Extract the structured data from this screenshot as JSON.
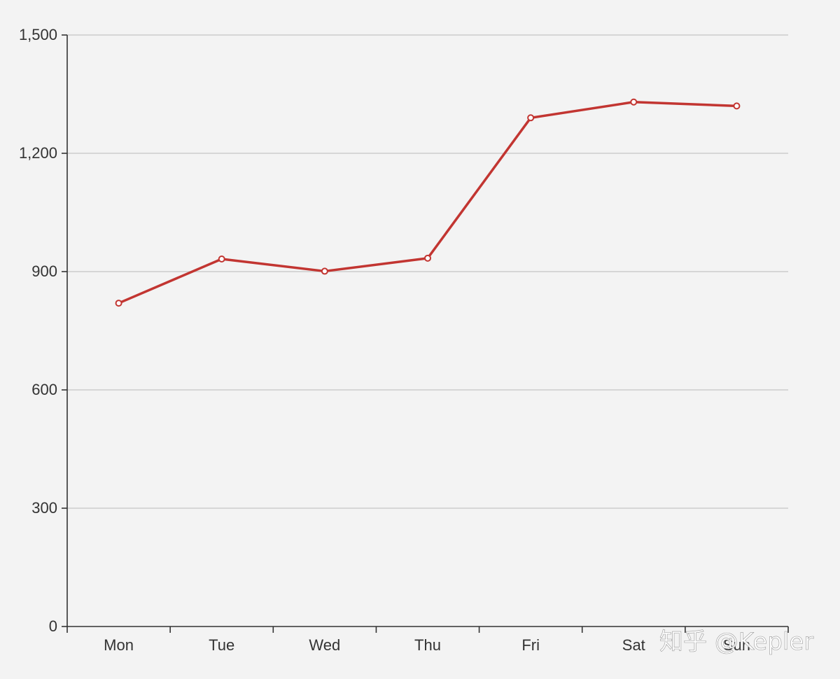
{
  "chart_data": {
    "type": "line",
    "categories": [
      "Mon",
      "Tue",
      "Wed",
      "Thu",
      "Fri",
      "Sat",
      "Sun"
    ],
    "series": [
      {
        "values": [
          820,
          932,
          901,
          934,
          1290,
          1330,
          1320
        ]
      }
    ],
    "ylim": [
      0,
      1500
    ],
    "yticks": [
      0,
      300,
      600,
      900,
      1200,
      1500
    ],
    "ytick_labels": [
      "0",
      "300",
      "600",
      "900",
      "1,200",
      "1,500"
    ],
    "grid": true,
    "colors": {
      "line": "#c23531",
      "marker_fill": "#ffffff",
      "axis": "#333333",
      "grid": "#cccccc",
      "background": "#f3f3f3"
    }
  },
  "watermark": "知乎 @Kepler"
}
